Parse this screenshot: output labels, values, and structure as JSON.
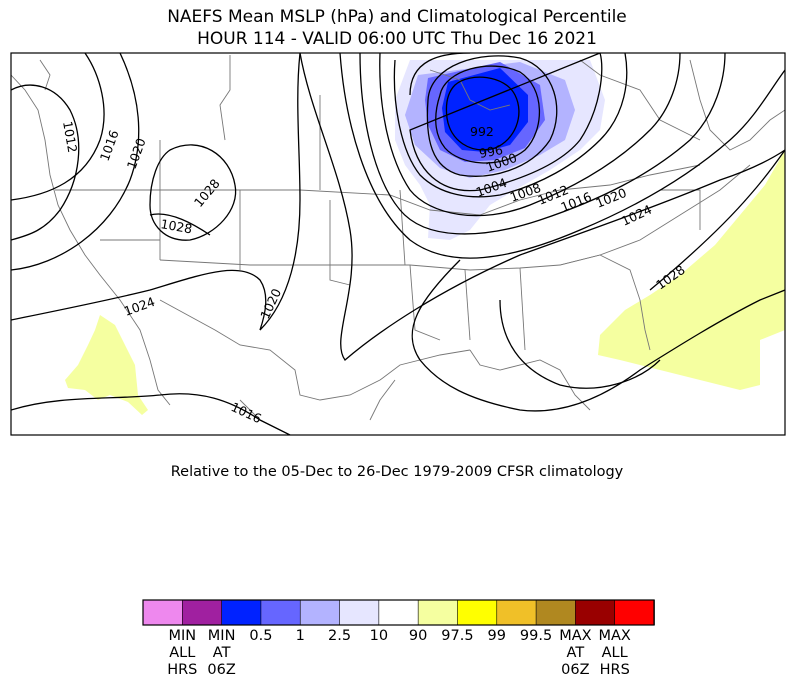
{
  "title_line1": "NAEFS Mean MSLP (hPa) and Climatological Percentile",
  "title_line2": "HOUR 114 - VALID 06:00 UTC Thu Dec 16 2021",
  "subtitle": "Relative to the 05-Dec to 26-Dec 1979-2009 CFSR climatology",
  "isobar_labels": [
    "1012",
    "1016",
    "1020",
    "1028",
    "1028",
    "1024",
    "1020",
    "1016",
    "992",
    "996",
    "1000",
    "1004",
    "1008",
    "1012",
    "1016",
    "1020",
    "1024",
    "1028"
  ],
  "colorbar": {
    "colors": [
      "#ee88ee",
      "#a020a0",
      "#0022ff",
      "#6666ff",
      "#b3b3ff",
      "#e6e6ff",
      "#ffffff",
      "#f5ffa0",
      "#ffff00",
      "#f0c028",
      "#b08820",
      "#990000",
      "#ff0000"
    ],
    "labels": [
      [
        "MIN",
        "ALL",
        "HRS"
      ],
      [
        "MIN",
        "AT",
        "06Z"
      ],
      [
        "0.5"
      ],
      [
        "1"
      ],
      [
        "2.5"
      ],
      [
        "10"
      ],
      [
        "90"
      ],
      [
        "97.5"
      ],
      [
        "99"
      ],
      [
        "99.5"
      ],
      [
        "MAX",
        "AT",
        "06Z"
      ],
      [
        "MAX",
        "ALL",
        "HRS"
      ]
    ]
  }
}
